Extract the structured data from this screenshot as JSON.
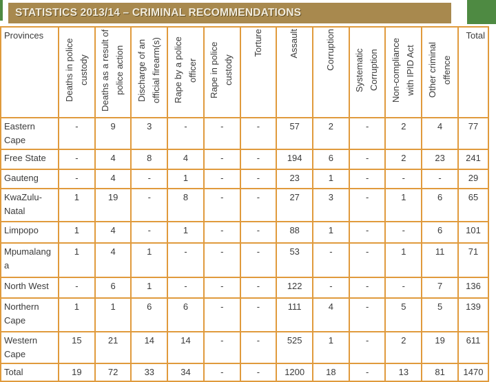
{
  "slide": {
    "title": "STATISTICS 2013/14 – CRIMINAL RECOMMENDATIONS"
  },
  "colors": {
    "title_bar_bg": "#A8894E",
    "title_text": "#F2ECDC",
    "accent_green": "#4E8A42",
    "table_border": "#E09A3C",
    "body_text": "#3A3A3A",
    "cell_bg": "#FFFFFF"
  },
  "table": {
    "corner_label": "Provinces",
    "total_label": "Total",
    "columns": [
      "Deaths in police custody",
      "Deaths as a result of police action",
      "Discharge of an official firearm(s)",
      "Rape by a police officer",
      "Rape in police custody",
      "Torture",
      "Assault",
      "Corruption",
      "Systematic Corruption",
      "Non-compliance with IPID Act",
      "Other criminal offence"
    ],
    "rows": [
      {
        "province": "Eastern Cape",
        "values": [
          "-",
          "9",
          "3",
          "-",
          "-",
          "-",
          "57",
          "2",
          "-",
          "2",
          "4",
          "77"
        ]
      },
      {
        "province": "Free State",
        "values": [
          "-",
          "4",
          "8",
          "4",
          "-",
          "-",
          "194",
          "6",
          "-",
          "2",
          "23",
          "241"
        ]
      },
      {
        "province": "Gauteng",
        "values": [
          "-",
          "4",
          "-",
          "1",
          "-",
          "-",
          "23",
          "1",
          "-",
          "-",
          "-",
          "29"
        ]
      },
      {
        "province": "KwaZulu-Natal",
        "values": [
          "1",
          "19",
          "-",
          "8",
          "-",
          "-",
          "27",
          "3",
          "-",
          "1",
          "6",
          "65"
        ]
      },
      {
        "province": "Limpopo",
        "values": [
          "1",
          "4",
          "-",
          "1",
          "-",
          "-",
          "88",
          "1",
          "-",
          "-",
          "6",
          "101"
        ]
      },
      {
        "province": "Mpumalanga",
        "values": [
          "1",
          "4",
          "1",
          "-",
          "-",
          "-",
          "53",
          "-",
          "-",
          "1",
          "11",
          "71"
        ]
      },
      {
        "province": "North West",
        "values": [
          "-",
          "6",
          "1",
          "-",
          "-",
          "-",
          "122",
          "-",
          "-",
          "-",
          "7",
          "136"
        ]
      },
      {
        "province": "Northern Cape",
        "values": [
          "1",
          "1",
          "6",
          "6",
          "-",
          "-",
          "111",
          "4",
          "-",
          "5",
          "5",
          "139"
        ]
      },
      {
        "province": "Western Cape",
        "values": [
          "15",
          "21",
          "14",
          "14",
          "-",
          "-",
          "525",
          "1",
          "-",
          "2",
          "19",
          "611"
        ]
      },
      {
        "province": "Total",
        "values": [
          "19",
          "72",
          "33",
          "34",
          "-",
          "-",
          "1200",
          "18",
          "-",
          "13",
          "81",
          "1470"
        ]
      }
    ]
  },
  "chart_data": {
    "type": "table",
    "title": "STATISTICS 2013/14 – CRIMINAL RECOMMENDATIONS",
    "row_header": "Provinces",
    "categories": [
      "Deaths in police custody",
      "Deaths as a result of police action",
      "Discharge of an official firearm(s)",
      "Rape by a police officer",
      "Rape in police custody",
      "Torture",
      "Assault",
      "Corruption",
      "Systematic Corruption",
      "Non-compliance with IPID Act",
      "Other criminal offence",
      "Total"
    ],
    "series": [
      {
        "name": "Eastern Cape",
        "values": [
          null,
          9,
          3,
          null,
          null,
          null,
          57,
          2,
          null,
          2,
          4,
          77
        ]
      },
      {
        "name": "Free State",
        "values": [
          null,
          4,
          8,
          4,
          null,
          null,
          194,
          6,
          null,
          2,
          23,
          241
        ]
      },
      {
        "name": "Gauteng",
        "values": [
          null,
          4,
          null,
          1,
          null,
          null,
          23,
          1,
          null,
          null,
          null,
          29
        ]
      },
      {
        "name": "KwaZulu-Natal",
        "values": [
          1,
          19,
          null,
          8,
          null,
          null,
          27,
          3,
          null,
          1,
          6,
          65
        ]
      },
      {
        "name": "Limpopo",
        "values": [
          1,
          4,
          null,
          1,
          null,
          null,
          88,
          1,
          null,
          null,
          6,
          101
        ]
      },
      {
        "name": "Mpumalanga",
        "values": [
          1,
          4,
          1,
          null,
          null,
          null,
          53,
          null,
          null,
          1,
          11,
          71
        ]
      },
      {
        "name": "North West",
        "values": [
          null,
          6,
          1,
          null,
          null,
          null,
          122,
          null,
          null,
          null,
          7,
          136
        ]
      },
      {
        "name": "Northern Cape",
        "values": [
          1,
          1,
          6,
          6,
          null,
          null,
          111,
          4,
          null,
          5,
          5,
          139
        ]
      },
      {
        "name": "Western Cape",
        "values": [
          15,
          21,
          14,
          14,
          null,
          null,
          525,
          1,
          null,
          2,
          19,
          611
        ]
      },
      {
        "name": "Total",
        "values": [
          19,
          72,
          33,
          34,
          null,
          null,
          1200,
          18,
          null,
          13,
          81,
          1470
        ]
      }
    ]
  }
}
